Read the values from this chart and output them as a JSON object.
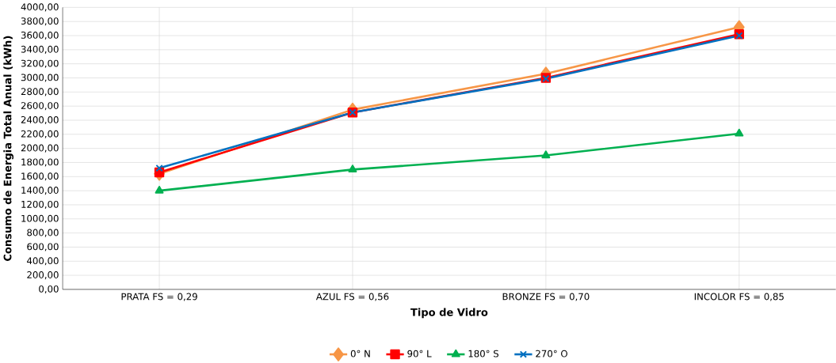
{
  "chart_data": {
    "type": "line",
    "xlabel": "Tipo de Vidro",
    "ylabel": "Consumo de Energia Total Anual (kWh)",
    "categories": [
      "PRATA FS = 0,29",
      "AZUL FS = 0,56",
      "BRONZE FS = 0,70",
      "INCOLOR FS = 0,85"
    ],
    "series": [
      {
        "name": "0° N",
        "color": "#f79646",
        "marker": "diamond",
        "values": [
          1640,
          2550,
          3060,
          3720
        ]
      },
      {
        "name": "90° L",
        "color": "#ff0000",
        "marker": "square",
        "values": [
          1660,
          2510,
          3000,
          3620
        ]
      },
      {
        "name": "180° S",
        "color": "#00b050",
        "marker": "triangle",
        "values": [
          1400,
          1700,
          1900,
          2210
        ]
      },
      {
        "name": "270° O",
        "color": "#0070c0",
        "marker": "cross",
        "values": [
          1720,
          2510,
          2990,
          3600
        ]
      }
    ],
    "ylim": [
      0,
      4000
    ],
    "yticks": [
      {
        "value": 0,
        "label": "0,00"
      },
      {
        "value": 200,
        "label": "200,00"
      },
      {
        "value": 400,
        "label": "400,00"
      },
      {
        "value": 600,
        "label": "600,00"
      },
      {
        "value": 800,
        "label": "800,00"
      },
      {
        "value": 1000,
        "label": "1000,00"
      },
      {
        "value": 1200,
        "label": "1200,00"
      },
      {
        "value": 1400,
        "label": "1400,00"
      },
      {
        "value": 1600,
        "label": "1600,00"
      },
      {
        "value": 1800,
        "label": "1800,00"
      },
      {
        "value": 2000,
        "label": "2000,00"
      },
      {
        "value": 2200,
        "label": "2200,00"
      },
      {
        "value": 2400,
        "label": "2400,00"
      },
      {
        "value": 2600,
        "label": "2600,00"
      },
      {
        "value": 2800,
        "label": "2800,00"
      },
      {
        "value": 3000,
        "label": "3000,00"
      },
      {
        "value": 3200,
        "label": "3200,00"
      },
      {
        "value": 3400,
        "label": "3400,00"
      },
      {
        "value": 3600,
        "label": "3600,00"
      },
      {
        "value": 3800,
        "label": "3800,00"
      },
      {
        "value": 4000,
        "label": "4000,00"
      }
    ],
    "grid": true,
    "legend": "bottom",
    "line_style": "solid"
  }
}
